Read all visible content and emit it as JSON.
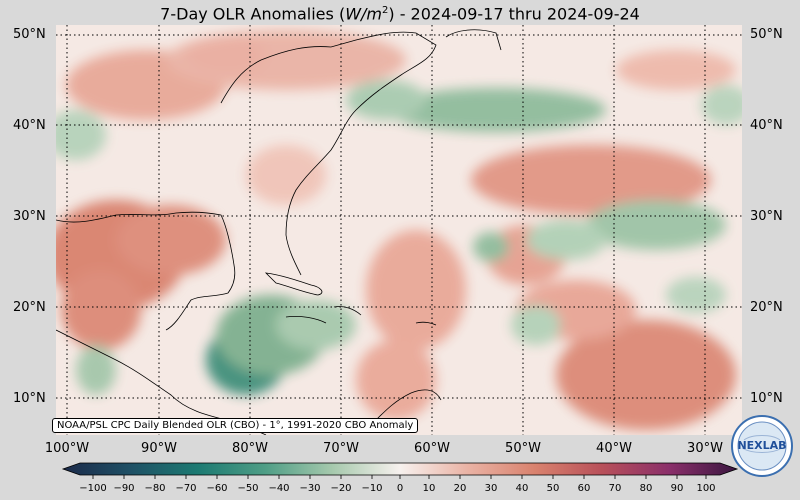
{
  "title_prefix": "7-Day OLR Anomalies (",
  "title_unit_base": "W/m",
  "title_unit_exp": "2",
  "title_suffix": ") - 2024-09-17 thru 2024-09-24",
  "credit": "NOAA/PSL CPC Daily Blended OLR (CBO) - 1°, 1991-2020 CBO Anomaly",
  "lat_labels": [
    "50°N",
    "40°N",
    "30°N",
    "20°N",
    "10°N"
  ],
  "lon_labels": [
    "100°W",
    "90°W",
    "80°W",
    "70°W",
    "60°W",
    "50°W",
    "40°W",
    "30°W"
  ],
  "colorbar_ticks": [
    "−100",
    "−90",
    "−80",
    "−70",
    "−60",
    "−50",
    "−40",
    "−30",
    "−20",
    "−10",
    "0",
    "10",
    "20",
    "30",
    "40",
    "50",
    "60",
    "70",
    "80",
    "90",
    "100"
  ],
  "logo_text": "NEXLAB",
  "colors": {
    "positive": "#d9826e",
    "negative": "#7fb08f",
    "neutral": "#f7eee9"
  }
}
